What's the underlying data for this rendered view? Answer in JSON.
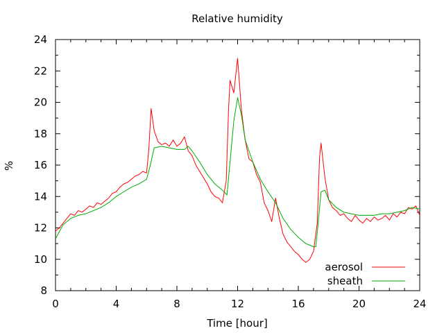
{
  "chart_data": {
    "type": "line",
    "title": "Relative humidity",
    "xlabel": "Time [hour]",
    "ylabel": "%",
    "xlim": [
      0,
      24
    ],
    "ylim": [
      8,
      24
    ],
    "xticks": [
      0,
      4,
      8,
      12,
      16,
      20,
      24
    ],
    "yticks": [
      8,
      10,
      12,
      14,
      16,
      18,
      20,
      22,
      24
    ],
    "grid": false,
    "legend_position": "bottom-right",
    "series": [
      {
        "name": "aerosol",
        "color": "#ff0000",
        "x": [
          0,
          0.25,
          0.5,
          0.75,
          1.0,
          1.25,
          1.5,
          1.75,
          2.0,
          2.25,
          2.5,
          2.75,
          3.0,
          3.25,
          3.5,
          3.75,
          4.0,
          4.25,
          4.5,
          4.75,
          5.0,
          5.25,
          5.5,
          5.75,
          6.0,
          6.15,
          6.3,
          6.5,
          6.75,
          7.0,
          7.25,
          7.5,
          7.75,
          8.0,
          8.25,
          8.5,
          8.75,
          9.0,
          9.25,
          9.5,
          9.75,
          10.0,
          10.25,
          10.5,
          10.75,
          11.0,
          11.25,
          11.4,
          11.5,
          11.75,
          12.0,
          12.25,
          12.5,
          12.75,
          13.0,
          13.25,
          13.5,
          13.75,
          14.0,
          14.25,
          14.5,
          14.75,
          15.0,
          15.25,
          15.5,
          15.75,
          16.0,
          16.25,
          16.5,
          16.75,
          17.0,
          17.25,
          17.4,
          17.5,
          17.75,
          18.0,
          18.25,
          18.5,
          18.75,
          19.0,
          19.25,
          19.5,
          19.75,
          20.0,
          20.25,
          20.5,
          20.75,
          21.0,
          21.25,
          21.5,
          21.75,
          22.0,
          22.25,
          22.5,
          22.75,
          23.0,
          23.25,
          23.5,
          23.75,
          24.0
        ],
        "values": [
          11.8,
          12.0,
          12.3,
          12.6,
          12.9,
          12.8,
          13.1,
          13.0,
          13.2,
          13.4,
          13.3,
          13.6,
          13.5,
          13.7,
          13.9,
          14.2,
          14.3,
          14.6,
          14.8,
          14.9,
          15.1,
          15.3,
          15.4,
          15.6,
          15.5,
          17.0,
          19.6,
          18.2,
          17.5,
          17.3,
          17.4,
          17.2,
          17.6,
          17.2,
          17.4,
          17.8,
          16.9,
          16.6,
          16.0,
          15.6,
          15.2,
          14.8,
          14.3,
          14.0,
          13.9,
          13.6,
          15.0,
          19.5,
          21.4,
          20.6,
          22.8,
          19.5,
          17.6,
          16.4,
          16.2,
          15.4,
          14.9,
          13.6,
          13.1,
          12.4,
          13.9,
          12.6,
          11.6,
          11.1,
          10.8,
          10.5,
          10.3,
          10.0,
          9.8,
          10.0,
          10.5,
          12.3,
          16.5,
          17.4,
          15.2,
          13.8,
          13.3,
          13.1,
          12.8,
          12.9,
          12.6,
          12.4,
          12.8,
          12.5,
          12.3,
          12.6,
          12.4,
          12.7,
          12.5,
          12.6,
          12.8,
          12.5,
          12.9,
          12.7,
          13.0,
          12.9,
          13.3,
          13.2,
          13.4,
          12.8
        ]
      },
      {
        "name": "sheath",
        "color": "#00aa00",
        "x": [
          0,
          0.5,
          1.0,
          1.5,
          2.0,
          2.5,
          3.0,
          3.5,
          4.0,
          4.5,
          5.0,
          5.5,
          6.0,
          6.25,
          6.5,
          7.0,
          7.5,
          8.0,
          8.5,
          8.75,
          9.0,
          9.5,
          10.0,
          10.5,
          11.0,
          11.3,
          11.5,
          11.75,
          12.0,
          12.25,
          12.5,
          13.0,
          13.5,
          14.0,
          14.5,
          15.0,
          15.5,
          16.0,
          16.5,
          17.0,
          17.15,
          17.3,
          17.5,
          17.75,
          18.0,
          18.5,
          19.0,
          19.5,
          20.0,
          20.5,
          21.0,
          21.5,
          22.0,
          22.5,
          23.0,
          23.5,
          24.0
        ],
        "values": [
          11.3,
          12.2,
          12.6,
          12.8,
          12.9,
          13.1,
          13.3,
          13.6,
          14.0,
          14.3,
          14.6,
          14.8,
          15.1,
          16.0,
          17.1,
          17.2,
          17.1,
          17.0,
          17.0,
          17.2,
          16.9,
          16.2,
          15.4,
          14.8,
          14.4,
          14.1,
          16.2,
          18.8,
          20.3,
          19.2,
          17.6,
          16.2,
          15.1,
          14.3,
          13.6,
          12.6,
          11.9,
          11.4,
          11.0,
          10.8,
          10.8,
          12.2,
          14.3,
          14.4,
          13.8,
          13.3,
          13.0,
          12.9,
          12.8,
          12.8,
          12.8,
          12.9,
          12.9,
          13.0,
          13.1,
          13.3,
          13.2
        ]
      }
    ]
  }
}
